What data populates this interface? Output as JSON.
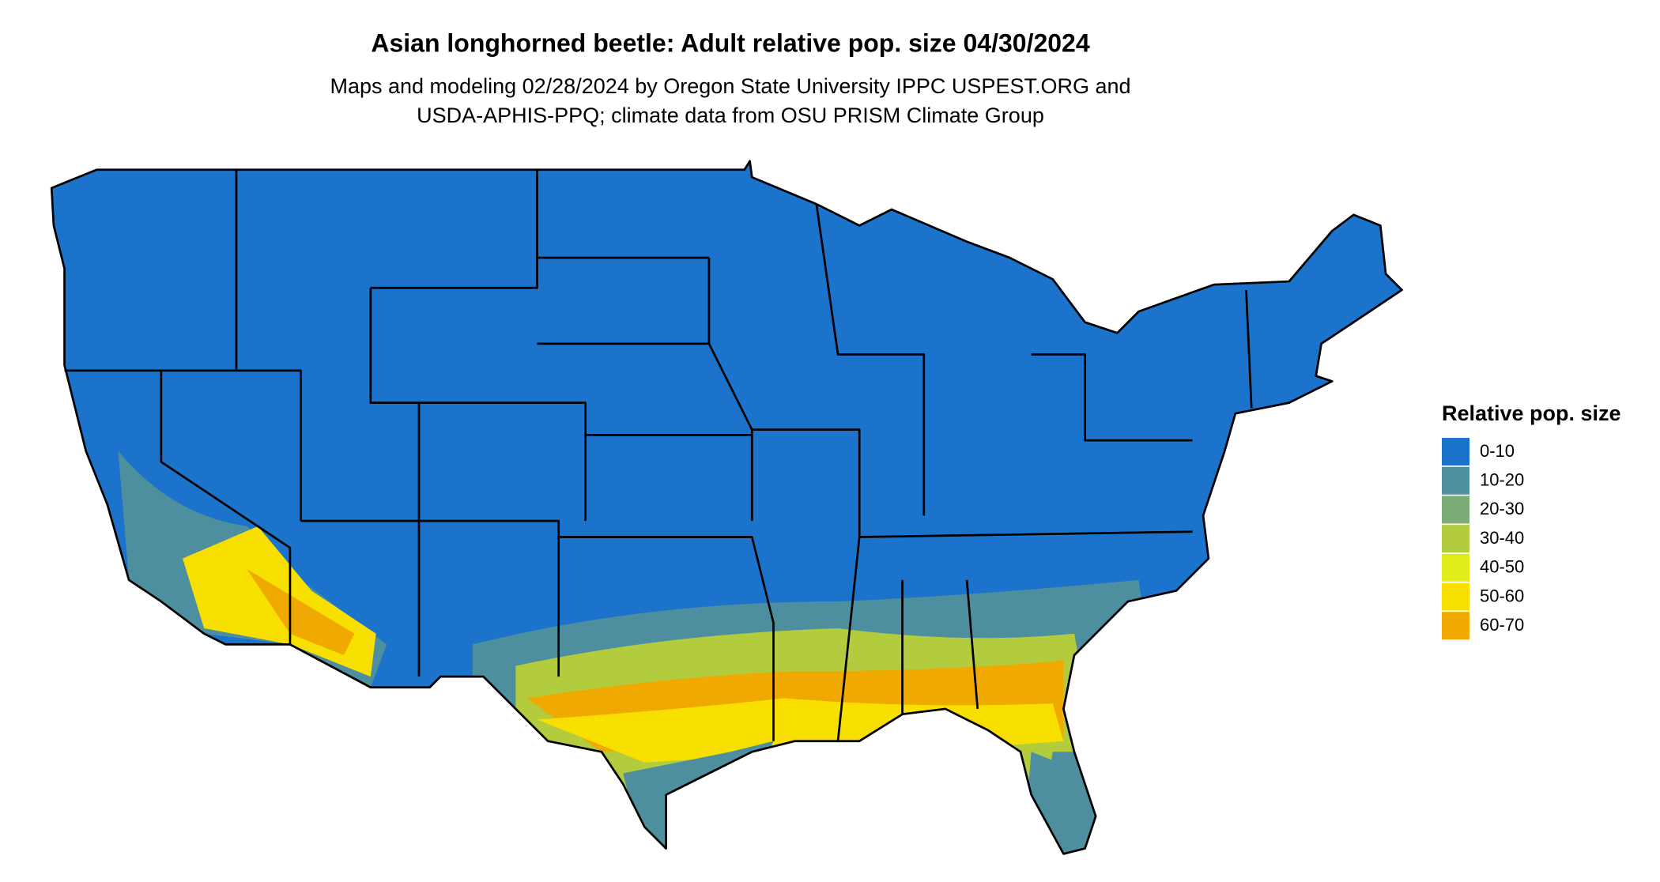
{
  "header": {
    "title": "Asian longhorned beetle: Adult relative pop. size 04/30/2024",
    "subtitle": [
      "Maps and modeling 02/28/2024 by Oregon State University IPPC USPEST.ORG and",
      "USDA-APHIS-PPQ; climate data from OSU PRISM Climate Group"
    ]
  },
  "legend": {
    "title": "Relative pop. size",
    "items": [
      {
        "label": "0-10",
        "color": "#1c73cb"
      },
      {
        "label": "10-20",
        "color": "#4e8f9f"
      },
      {
        "label": "20-30",
        "color": "#7bab77"
      },
      {
        "label": "30-40",
        "color": "#b3cc3e"
      },
      {
        "label": "40-50",
        "color": "#e2ec1a"
      },
      {
        "label": "50-60",
        "color": "#f7df00"
      },
      {
        "label": "60-70",
        "color": "#f0a900"
      }
    ]
  }
}
